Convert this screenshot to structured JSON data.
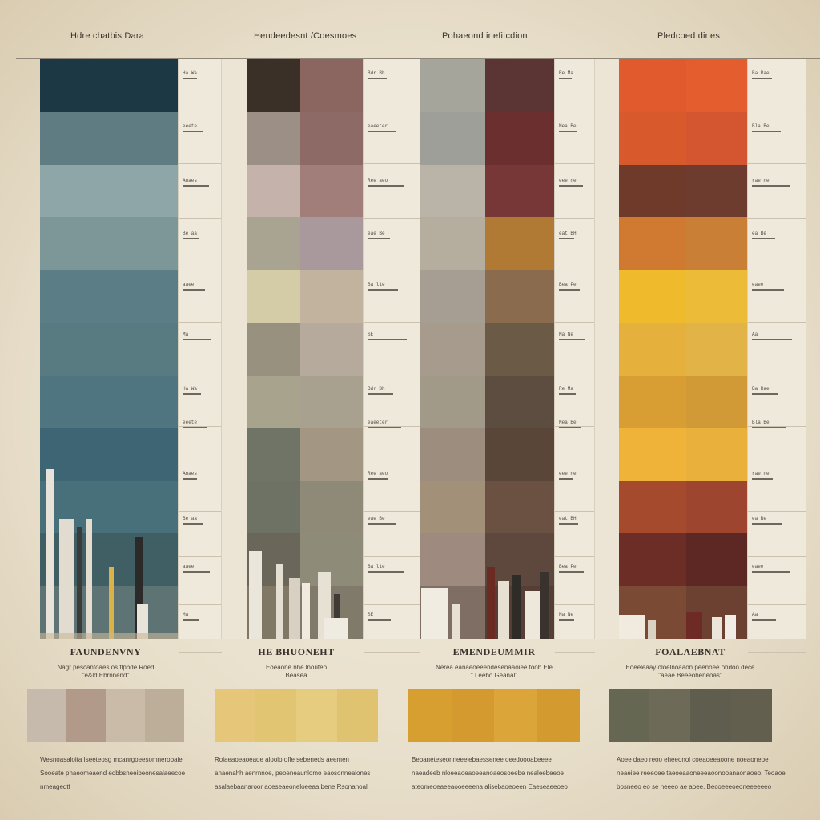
{
  "group_titles": [
    "Hdre chatbis Dara",
    "Hendeedesnt /Coesmoes",
    "Pohaeond inefitcdion",
    "Pledcoed dines"
  ],
  "columns": {
    "c1": [
      "#1c3845",
      "#5f7c82",
      "#8fa6a8",
      "#7d9798",
      "#5b7e86",
      "#587b82",
      "#4f7680",
      "#3d6574",
      "#48707a",
      "#3f5f65",
      "#5e7474"
    ],
    "c2": [
      "#3b3028",
      "#9b8f86",
      "#c4b2ab",
      "#a9a392",
      "#d4cca7",
      "#98917f",
      "#a7a38d",
      "#6f7466",
      "#6e7265",
      "#6a6659",
      "#807765"
    ],
    "c3": [
      "#8b6660",
      "#8e6a66",
      "#a17e79",
      "#a9989c",
      "#c2b39f",
      "#b5aa9c",
      "#a9a190",
      "#a39783",
      "#8f8a78",
      "#8e8c79",
      "#7f7a6a"
    ],
    "c4": [
      "#a6a59b",
      "#9e9f98",
      "#b9b4a7",
      "#b5ae9f",
      "#a69e93",
      "#a69b8c",
      "#a29a89",
      "#9c8d7f",
      "#a39079",
      "#9f8a80",
      "#7f6e63"
    ],
    "c5": [
      "#5a3534",
      "#6c2f2f",
      "#773736",
      "#b07a34",
      "#8b6b4e",
      "#6a5a46",
      "#5c4d40",
      "#594638",
      "#6a5142",
      "#5e473d",
      "#563e34"
    ],
    "c6": [
      "#e05a2d",
      "#d85a2c",
      "#6f3a2a",
      "#cf7a30",
      "#f0ba2d",
      "#e5b03b",
      "#d99e33",
      "#f0b33a",
      "#a54a2c",
      "#6c2d27",
      "#7a4a34"
    ],
    "c7": [
      "#e35d2e",
      "#d45630",
      "#6e3b2f",
      "#c98036",
      "#ecbc38",
      "#e2b447",
      "#d29a37",
      "#e9b03c",
      "#9e4530",
      "#5d2724",
      "#6c4131"
    ]
  },
  "spec_lines": [
    [
      "Ha Wa",
      "eeete",
      "Anaes",
      "Be aa",
      "aaee",
      "Ma"
    ],
    [
      "Bdr Bh",
      "eaeeter",
      "Ree aeo",
      "eae Be",
      "Ba lle",
      "SE"
    ],
    [
      "Re Ma",
      "Mea Be",
      "eee ne",
      "eat BH",
      "Bea Fe",
      "Ma Ne"
    ],
    [
      "Ba Rae",
      "Bla Be",
      "rae ne",
      "ea Be",
      "eaee",
      "Aa"
    ]
  ],
  "sections": [
    {
      "heading": "FAUNDENVNY",
      "sub": "Nagr pescantoaes os flpbde Roed\n\"e&ld Ebrnnend\"",
      "palette": [
        "#c5baab",
        "#b29a8a",
        "#c9bba8",
        "#bcae98"
      ],
      "desc": "Wesnoasaloita Iseeteosg mcanrgoeesomnerobaie\nSooeate  pnaeomeaend edbbsneeibeonesalaeecoe\nnmeagedtf"
    },
    {
      "heading": "HE BHUONEHT",
      "sub": "Eoeaone nhe lnouteo\nBeasea",
      "palette": [
        "#e6c77a",
        "#e2c572",
        "#e5cc7e",
        "#e0c370"
      ],
      "desc": "Rolaeaoeaoeaoe aloolo offe sebeneds aeemen\nanaenahh aenrnnoe, peoeneaunlomo eaosonnealones\nasalaebaanaroor aoeseaeoneloeeaa bene Rsonanoal"
    },
    {
      "heading": "EMENDEUMMIR",
      "sub": "Nerea eanaeoeeendesenaaoiee foob Ele\n\" Leebo Geanal\"",
      "palette": [
        "#d79f30",
        "#d4992f",
        "#dba53a",
        "#d29a2f"
      ],
      "desc": "Bebaneteseonneeelebaessenee oeedoooabeeee\nnaeadeeb nloeeaoeaoeeanoaeosoeebe nealeebeeoe\nateomeoeaeeaooeeeena alisebaoeoeen Eaeseaeeoeo"
    },
    {
      "heading": "FOALAEBNAT",
      "sub": "Eoeeleaay oloelnoaaon peenoee ohdoo dece\n\"aeae Beeeoheneoas\"",
      "palette": [
        "#666752",
        "#6d6b58",
        "#5f5d4e",
        "#625f4f"
      ],
      "desc": "Aoee daeo reoo eheeonol coeaoeeaoone noeaoneoe\nneaeiee reeeoee taeoeaaoneeeaoonooanaonaoeo. Teoaoe\nbosneeo eo se neeeo ae aoee. Becoeeeoeoneeeeeeo"
    }
  ]
}
